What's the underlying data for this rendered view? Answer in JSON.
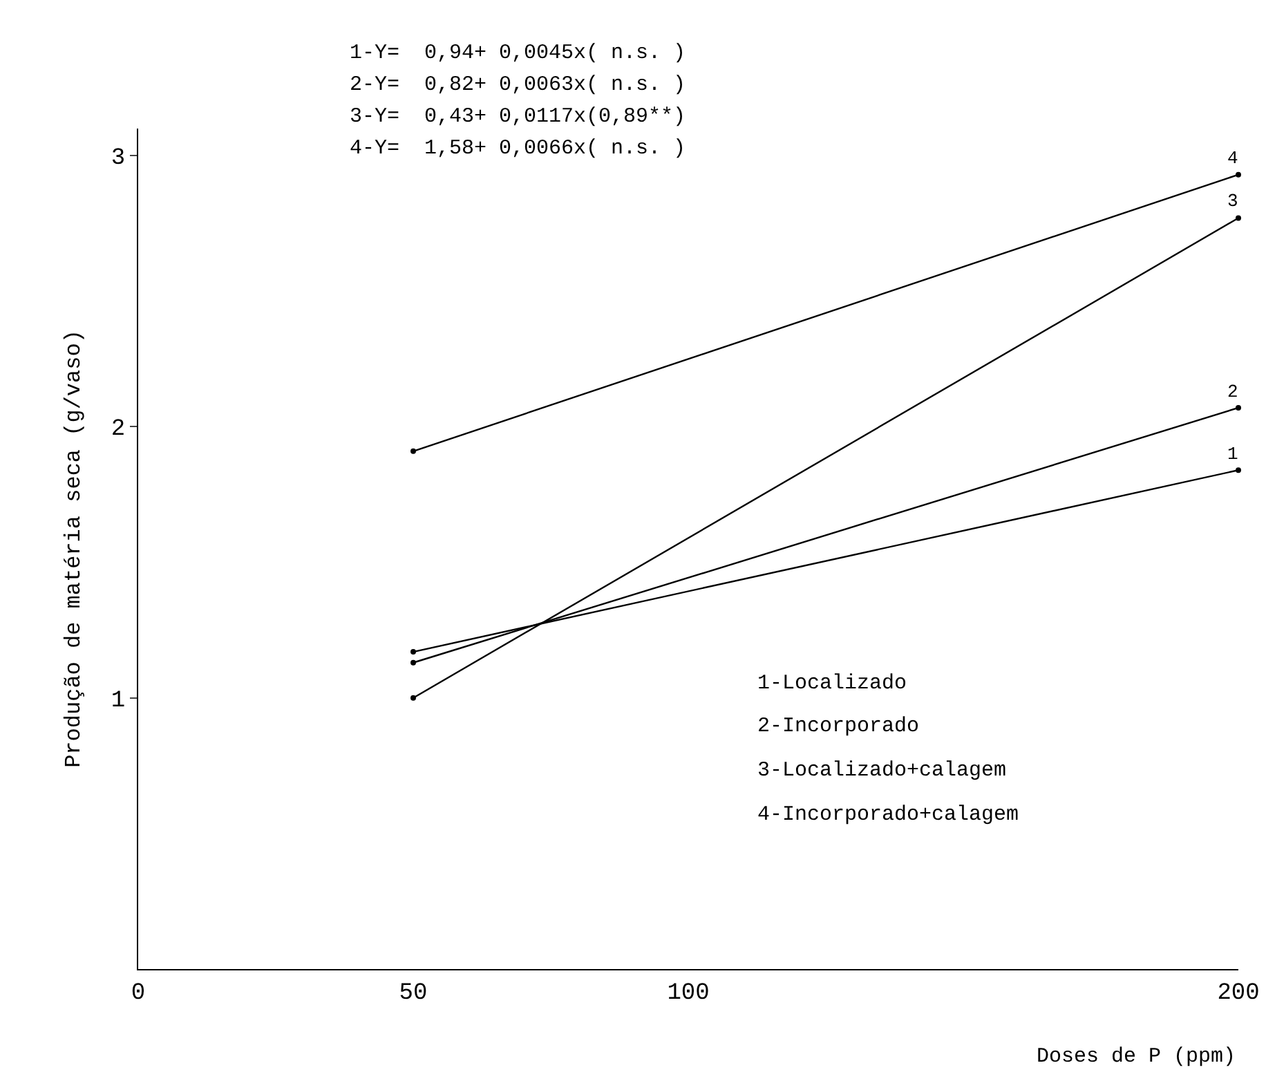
{
  "chart_data": {
    "type": "line",
    "xlabel": "Doses de P (ppm)",
    "ylabel": "Produção de matéria seca (g/vaso)",
    "xlim": [
      0,
      200
    ],
    "xticks": [
      0,
      50,
      100,
      200
    ],
    "ylim": [
      0,
      3.1
    ],
    "yticks": [
      1,
      2,
      3
    ],
    "x": [
      50,
      200
    ],
    "series": [
      {
        "name": "1",
        "color": "#000000",
        "values": [
          1.17,
          1.84
        ]
      },
      {
        "name": "2",
        "color": "#000000",
        "values": [
          1.13,
          2.07
        ]
      },
      {
        "name": "3",
        "color": "#000000",
        "values": [
          1.0,
          2.77
        ]
      },
      {
        "name": "4",
        "color": "#000000",
        "values": [
          1.91,
          2.93
        ]
      }
    ],
    "annotations": [
      "1-Y=  0,94+ 0,0045x( n.s. )",
      "2-Y=  0,82+ 0,0063x( n.s. )",
      "3-Y=  0,43+ 0,0117x(0,89**)",
      "4-Y=  1,58+ 0,0066x( n.s. )",
      "1-Localizado",
      "2-Incorporado",
      "3-Localizado+calagem",
      "4-Incorporado+calagem"
    ],
    "grid": false,
    "legend": false,
    "marker": "circle",
    "line_style": "solid"
  }
}
